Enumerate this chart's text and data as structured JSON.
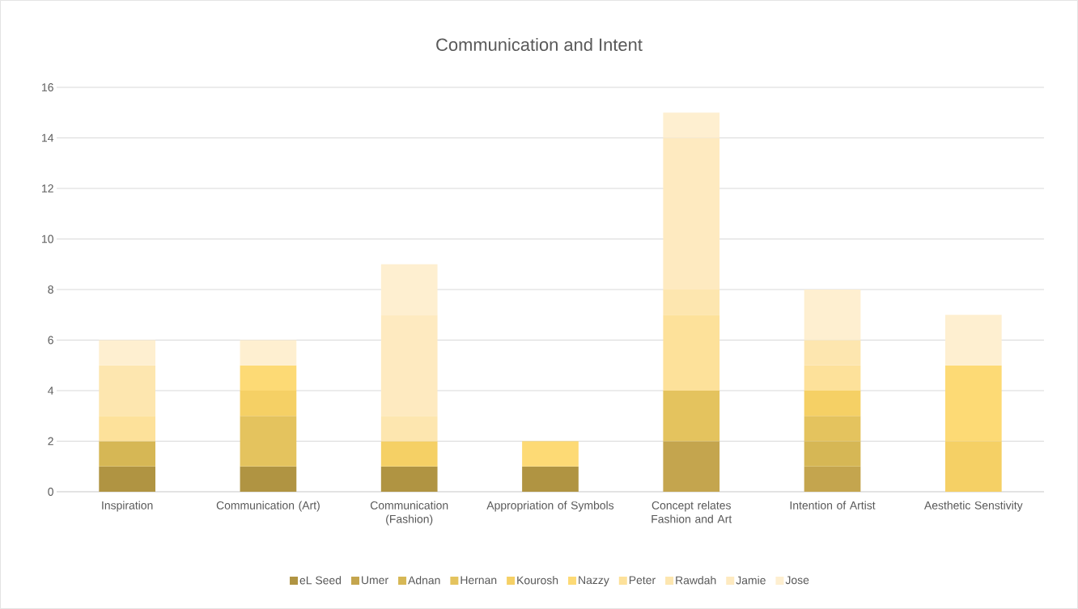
{
  "chart_data": {
    "type": "bar",
    "title": "Communication and Intent",
    "stacked": true,
    "categories": [
      "Inspiration",
      "Communication (Art)",
      "Communication (Fashion)",
      "Appropriation of Symbols",
      "Concept relates Fashion and Art",
      "Intention of Artist",
      "Aesthetic Senstivity"
    ],
    "series": [
      {
        "name": "eL Seed",
        "color": "#b09442",
        "values": [
          1,
          1,
          1,
          1,
          null,
          null,
          null
        ]
      },
      {
        "name": "Umer",
        "color": "#c4a54e",
        "values": [
          null,
          null,
          null,
          null,
          2,
          1,
          null
        ]
      },
      {
        "name": "Adnan",
        "color": "#d6b755",
        "values": [
          1,
          null,
          null,
          null,
          null,
          1,
          null
        ]
      },
      {
        "name": "Hernan",
        "color": "#e4c35e",
        "values": [
          null,
          2,
          null,
          null,
          2,
          1,
          null
        ]
      },
      {
        "name": "Kourosh",
        "color": "#f5d065",
        "values": [
          null,
          1,
          1,
          null,
          null,
          1,
          2
        ]
      },
      {
        "name": "Nazzy",
        "color": "#fdda75",
        "values": [
          null,
          1,
          null,
          1,
          null,
          null,
          3
        ]
      },
      {
        "name": "Peter",
        "color": "#fde19a",
        "values": [
          1,
          null,
          null,
          null,
          3,
          1,
          null
        ]
      },
      {
        "name": "Rawdah",
        "color": "#fde6af",
        "values": [
          2,
          null,
          1,
          null,
          1,
          1,
          null
        ]
      },
      {
        "name": "Jamie",
        "color": "#feeac0",
        "values": [
          null,
          null,
          4,
          null,
          6,
          null,
          null
        ]
      },
      {
        "name": "Jose",
        "color": "#feefd0",
        "values": [
          1,
          1,
          2,
          null,
          1,
          2,
          2
        ]
      }
    ],
    "ylim": [
      0,
      16
    ],
    "yticks": [
      0,
      2,
      4,
      6,
      8,
      10,
      12,
      14,
      16
    ],
    "grid": "y",
    "legend": "bottom"
  }
}
